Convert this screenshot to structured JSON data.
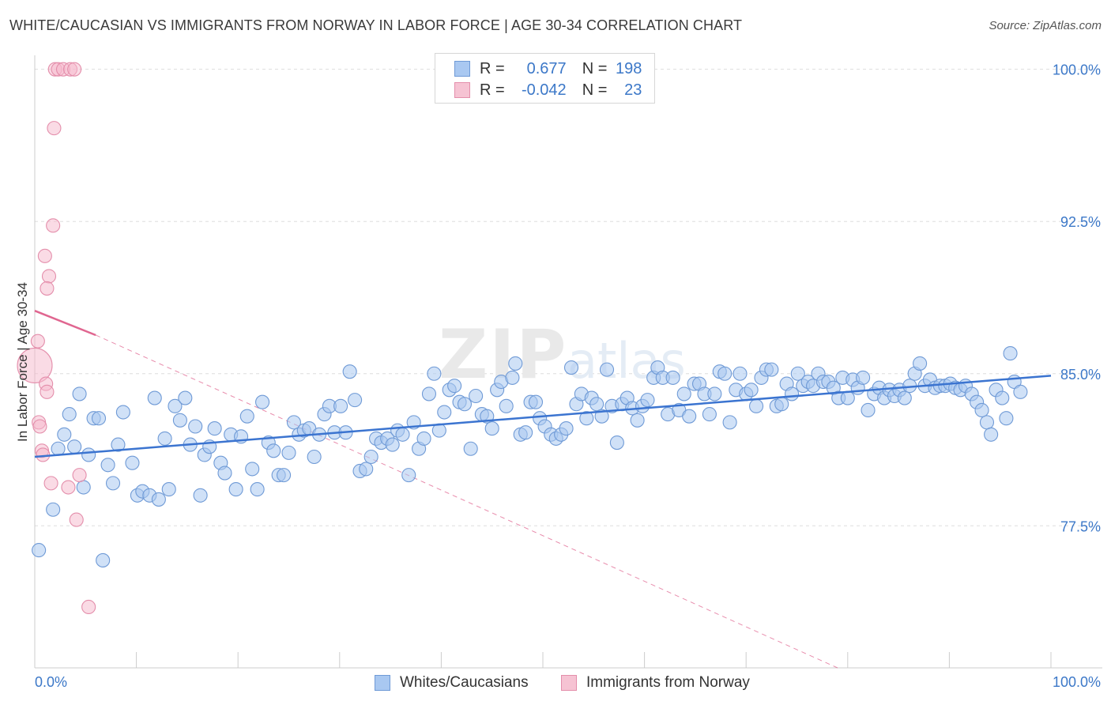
{
  "header": {
    "title": "WHITE/CAUCASIAN VS IMMIGRANTS FROM NORWAY IN LABOR FORCE | AGE 30-34 CORRELATION CHART",
    "source": "Source: ZipAtlas.com"
  },
  "colors": {
    "blue": "#3b74d0",
    "blue_fill": "#a9c8f1",
    "pink": "#e06690",
    "pink_fill": "#f6b8cb",
    "tick_text": "#3c78c8",
    "grid": "#dddddd"
  },
  "legend": {
    "series1": {
      "r_label": "R =",
      "r_value": "0.677",
      "n_label": "N =",
      "n_value": "198"
    },
    "series2": {
      "r_label": "R =",
      "r_value": "-0.042",
      "n_label": "N =",
      "n_value": "23"
    }
  },
  "chart_data": {
    "type": "scatter",
    "title": "WHITE/CAUCASIAN VS IMMIGRANTS FROM NORWAY IN LABOR FORCE | AGE 30-34 CORRELATION CHART",
    "xlabel": "",
    "ylabel": "In Labor Force | Age 30-34",
    "xlim": [
      0,
      100
    ],
    "ylim": [
      70.5,
      101.0
    ],
    "x_tick_labels": [
      "0.0%",
      "100.0%"
    ],
    "y_ticks": [
      {
        "value": 77.5,
        "label": "77.5%"
      },
      {
        "value": 85.0,
        "label": "85.0%"
      },
      {
        "value": 92.5,
        "label": "92.5%"
      },
      {
        "value": 100.0,
        "label": "100.0%"
      }
    ],
    "grid": true,
    "legend_position": "top-center",
    "series": [
      {
        "name": "Whites/Caucasians",
        "color": "#3b74d0",
        "trend": {
          "x": [
            0,
            100
          ],
          "y": [
            80.9,
            84.9
          ],
          "style": "solid"
        },
        "points": [
          [
            0.4,
            76.3
          ],
          [
            1.8,
            78.3
          ],
          [
            2.3,
            81.3
          ],
          [
            2.9,
            82.0
          ],
          [
            3.4,
            83.0
          ],
          [
            3.9,
            81.4
          ],
          [
            4.4,
            84.0
          ],
          [
            4.8,
            79.4
          ],
          [
            5.3,
            81.0
          ],
          [
            5.8,
            82.8
          ],
          [
            6.3,
            82.8
          ],
          [
            6.7,
            75.8
          ],
          [
            7.2,
            80.5
          ],
          [
            7.7,
            79.6
          ],
          [
            8.2,
            81.5
          ],
          [
            8.7,
            83.1
          ],
          [
            9.6,
            80.6
          ],
          [
            10.1,
            79.0
          ],
          [
            10.6,
            79.2
          ],
          [
            11.3,
            79.0
          ],
          [
            11.8,
            83.8
          ],
          [
            12.2,
            78.8
          ],
          [
            12.8,
            81.8
          ],
          [
            13.2,
            79.3
          ],
          [
            13.8,
            83.4
          ],
          [
            14.3,
            82.7
          ],
          [
            14.8,
            83.8
          ],
          [
            15.3,
            81.5
          ],
          [
            15.8,
            82.4
          ],
          [
            16.3,
            79.0
          ],
          [
            16.7,
            81.0
          ],
          [
            17.2,
            81.4
          ],
          [
            17.7,
            82.3
          ],
          [
            18.3,
            80.6
          ],
          [
            18.7,
            80.1
          ],
          [
            19.3,
            82.0
          ],
          [
            19.8,
            79.3
          ],
          [
            20.3,
            81.9
          ],
          [
            20.9,
            82.9
          ],
          [
            21.4,
            80.3
          ],
          [
            21.9,
            79.3
          ],
          [
            22.4,
            83.6
          ],
          [
            23.0,
            81.6
          ],
          [
            23.5,
            81.2
          ],
          [
            24.0,
            80.0
          ],
          [
            24.5,
            80.0
          ],
          [
            25.0,
            81.1
          ],
          [
            25.5,
            82.6
          ],
          [
            26.0,
            82.0
          ],
          [
            26.5,
            82.2
          ],
          [
            27.0,
            82.3
          ],
          [
            27.5,
            80.9
          ],
          [
            28.0,
            82.0
          ],
          [
            28.5,
            83.0
          ],
          [
            29.0,
            83.4
          ],
          [
            29.5,
            82.1
          ],
          [
            30.1,
            83.4
          ],
          [
            30.6,
            82.1
          ],
          [
            31.0,
            85.1
          ],
          [
            31.5,
            83.7
          ],
          [
            32.0,
            80.2
          ],
          [
            32.6,
            80.3
          ],
          [
            33.1,
            80.9
          ],
          [
            33.6,
            81.8
          ],
          [
            34.1,
            81.6
          ],
          [
            34.7,
            81.8
          ],
          [
            35.2,
            81.5
          ],
          [
            35.7,
            82.2
          ],
          [
            36.2,
            82.0
          ],
          [
            36.8,
            80.0
          ],
          [
            37.3,
            82.6
          ],
          [
            37.8,
            81.3
          ],
          [
            38.3,
            81.8
          ],
          [
            38.8,
            84.0
          ],
          [
            39.3,
            85.0
          ],
          [
            39.8,
            82.2
          ],
          [
            40.3,
            83.1
          ],
          [
            40.8,
            84.2
          ],
          [
            41.3,
            84.4
          ],
          [
            41.8,
            83.6
          ],
          [
            42.3,
            83.5
          ],
          [
            42.9,
            81.3
          ],
          [
            43.4,
            83.9
          ],
          [
            44.0,
            83.0
          ],
          [
            44.5,
            82.9
          ],
          [
            45.0,
            82.3
          ],
          [
            45.5,
            84.2
          ],
          [
            45.9,
            84.6
          ],
          [
            46.4,
            83.4
          ],
          [
            47.0,
            84.8
          ],
          [
            47.3,
            85.5
          ],
          [
            47.8,
            82.0
          ],
          [
            48.3,
            82.1
          ],
          [
            48.8,
            83.6
          ],
          [
            49.3,
            83.6
          ],
          [
            49.7,
            82.8
          ],
          [
            50.2,
            82.4
          ],
          [
            50.8,
            82.0
          ],
          [
            51.3,
            81.8
          ],
          [
            51.8,
            82.0
          ],
          [
            52.3,
            82.3
          ],
          [
            52.8,
            85.3
          ],
          [
            53.3,
            83.5
          ],
          [
            53.8,
            84.0
          ],
          [
            54.3,
            82.8
          ],
          [
            54.8,
            83.8
          ],
          [
            55.3,
            83.5
          ],
          [
            55.8,
            82.9
          ],
          [
            56.3,
            85.2
          ],
          [
            56.8,
            83.4
          ],
          [
            57.3,
            81.6
          ],
          [
            57.8,
            83.5
          ],
          [
            58.3,
            83.8
          ],
          [
            58.8,
            83.3
          ],
          [
            59.3,
            82.7
          ],
          [
            59.8,
            83.4
          ],
          [
            60.3,
            83.7
          ],
          [
            60.9,
            84.8
          ],
          [
            61.3,
            85.3
          ],
          [
            61.8,
            84.8
          ],
          [
            62.3,
            83.0
          ],
          [
            62.8,
            84.8
          ],
          [
            63.4,
            83.2
          ],
          [
            63.9,
            84.0
          ],
          [
            64.4,
            82.9
          ],
          [
            64.9,
            84.5
          ],
          [
            65.4,
            84.5
          ],
          [
            65.9,
            84.0
          ],
          [
            66.4,
            83.0
          ],
          [
            66.9,
            84.0
          ],
          [
            67.4,
            85.1
          ],
          [
            67.9,
            85.0
          ],
          [
            68.4,
            82.6
          ],
          [
            69.0,
            84.2
          ],
          [
            69.4,
            85.0
          ],
          [
            70.0,
            84.0
          ],
          [
            70.5,
            84.2
          ],
          [
            71.0,
            83.4
          ],
          [
            71.5,
            84.8
          ],
          [
            72.0,
            85.2
          ],
          [
            72.5,
            85.2
          ],
          [
            73.0,
            83.4
          ],
          [
            73.5,
            83.5
          ],
          [
            74.0,
            84.5
          ],
          [
            74.5,
            84.0
          ],
          [
            75.1,
            85.0
          ],
          [
            75.6,
            84.4
          ],
          [
            76.1,
            84.6
          ],
          [
            76.6,
            84.4
          ],
          [
            77.1,
            85.0
          ],
          [
            77.6,
            84.6
          ],
          [
            78.1,
            84.6
          ],
          [
            78.6,
            84.3
          ],
          [
            79.1,
            83.8
          ],
          [
            79.5,
            84.8
          ],
          [
            80.0,
            83.8
          ],
          [
            80.5,
            84.7
          ],
          [
            81.0,
            84.3
          ],
          [
            81.5,
            84.8
          ],
          [
            82.0,
            83.2
          ],
          [
            82.6,
            84.0
          ],
          [
            83.1,
            84.3
          ],
          [
            83.6,
            83.8
          ],
          [
            84.1,
            84.2
          ],
          [
            84.6,
            83.9
          ],
          [
            85.1,
            84.2
          ],
          [
            85.6,
            83.8
          ],
          [
            86.1,
            84.4
          ],
          [
            86.6,
            85.0
          ],
          [
            87.1,
            85.5
          ],
          [
            87.6,
            84.4
          ],
          [
            88.1,
            84.7
          ],
          [
            88.6,
            84.3
          ],
          [
            89.1,
            84.4
          ],
          [
            89.6,
            84.4
          ],
          [
            90.1,
            84.5
          ],
          [
            90.6,
            84.3
          ],
          [
            91.1,
            84.2
          ],
          [
            91.6,
            84.4
          ],
          [
            92.2,
            84.0
          ],
          [
            92.7,
            83.6
          ],
          [
            93.2,
            83.2
          ],
          [
            93.7,
            82.6
          ],
          [
            94.1,
            82.0
          ],
          [
            94.6,
            84.2
          ],
          [
            95.2,
            83.8
          ],
          [
            95.6,
            82.8
          ],
          [
            96.0,
            86.0
          ],
          [
            96.4,
            84.6
          ],
          [
            97.0,
            84.1
          ]
        ]
      },
      {
        "name": "Immigrants from Norway",
        "color": "#e06690",
        "trend": {
          "x": [
            0,
            6.0
          ],
          "y": [
            88.1,
            86.9
          ],
          "style": "solid",
          "dashed_extension_to": [
            79.0,
            70.5
          ]
        },
        "points": [
          [
            2.0,
            100.0
          ],
          [
            2.3,
            100.0
          ],
          [
            2.8,
            100.0
          ],
          [
            3.5,
            100.0
          ],
          [
            3.9,
            100.0
          ],
          [
            1.9,
            97.1
          ],
          [
            1.8,
            92.3
          ],
          [
            1.0,
            90.8
          ],
          [
            1.4,
            89.8
          ],
          [
            1.2,
            89.2
          ],
          [
            0.3,
            86.6
          ],
          [
            0.0,
            85.4
          ],
          [
            1.1,
            84.5
          ],
          [
            1.2,
            84.1
          ],
          [
            0.4,
            82.6
          ],
          [
            0.5,
            82.4
          ],
          [
            0.7,
            81.2
          ],
          [
            0.8,
            81.0
          ],
          [
            1.6,
            79.6
          ],
          [
            3.3,
            79.4
          ],
          [
            4.4,
            80.0
          ],
          [
            4.1,
            77.8
          ],
          [
            5.3,
            73.5
          ]
        ]
      }
    ]
  },
  "bottom_legend": {
    "item1": "Whites/Caucasians",
    "item2": "Immigrants from Norway"
  },
  "watermark": "ZIPatlas"
}
